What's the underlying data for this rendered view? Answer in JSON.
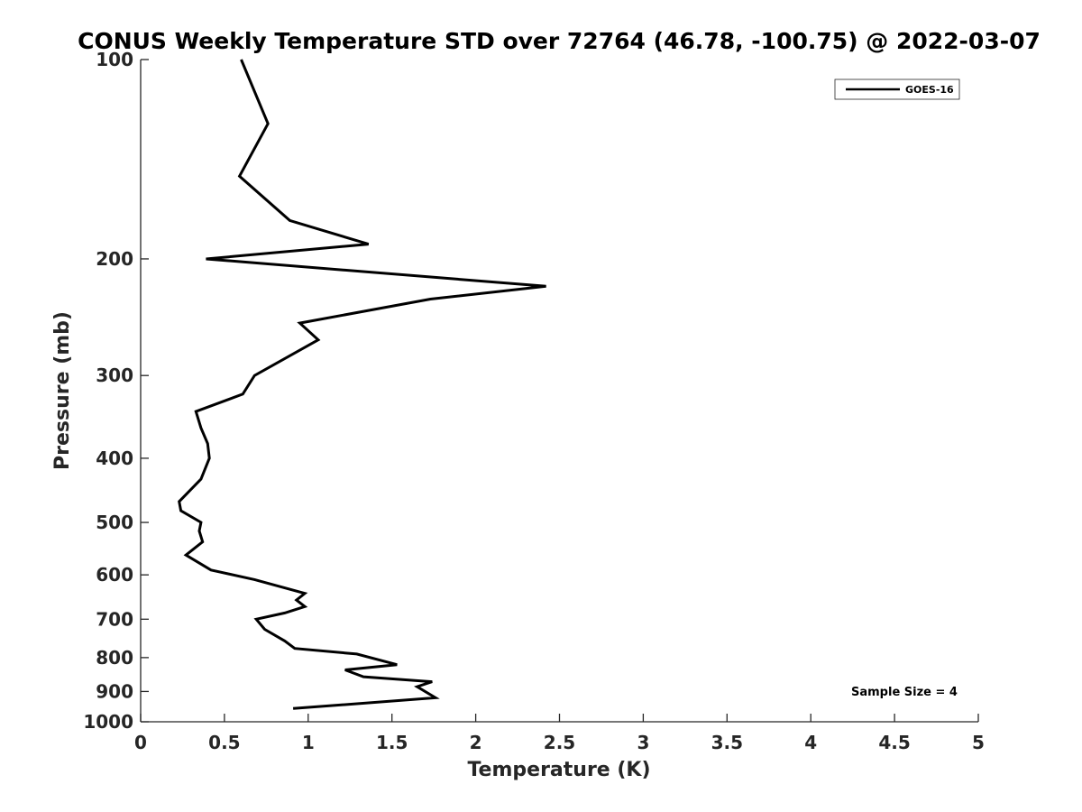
{
  "chart_data": {
    "type": "line",
    "title": "CONUS Weekly Temperature STD over 72764 (46.78, -100.75) @ 2022-03-07",
    "xlabel": "Temperature (K)",
    "ylabel": "Pressure (mb)",
    "xlim": [
      0,
      5
    ],
    "ylim": [
      100,
      1000
    ],
    "yscale": "log",
    "y_reversed": true,
    "xticks": [
      0,
      0.5,
      1,
      1.5,
      2,
      2.5,
      3,
      3.5,
      4,
      4.5,
      5
    ],
    "xtick_labels": [
      "0",
      "0.5",
      "1",
      "1.5",
      "2",
      "2.5",
      "3",
      "3.5",
      "4",
      "4.5",
      "5"
    ],
    "yticks": [
      100,
      200,
      300,
      400,
      500,
      600,
      700,
      800,
      900,
      1000
    ],
    "ytick_labels": [
      "100",
      "200",
      "300",
      "400",
      "500",
      "600",
      "700",
      "800",
      "900",
      "1000"
    ],
    "grid": false,
    "legend": {
      "position": "top-right",
      "entries": [
        "GOES-16"
      ]
    },
    "annotations": [
      "Sample Size = 4"
    ],
    "series": [
      {
        "name": "GOES-16",
        "color": "#000000",
        "points": [
          [
            0.6,
            100
          ],
          [
            0.76,
            125
          ],
          [
            0.59,
            150
          ],
          [
            0.89,
            175
          ],
          [
            1.36,
            190
          ],
          [
            0.39,
            200
          ],
          [
            2.42,
            220
          ],
          [
            1.73,
            230
          ],
          [
            0.95,
            250
          ],
          [
            1.06,
            265
          ],
          [
            0.68,
            300
          ],
          [
            0.61,
            320
          ],
          [
            0.33,
            340
          ],
          [
            0.36,
            360
          ],
          [
            0.4,
            380
          ],
          [
            0.41,
            400
          ],
          [
            0.36,
            430
          ],
          [
            0.23,
            465
          ],
          [
            0.24,
            480
          ],
          [
            0.36,
            500
          ],
          [
            0.35,
            515
          ],
          [
            0.37,
            535
          ],
          [
            0.27,
            560
          ],
          [
            0.42,
            590
          ],
          [
            0.68,
            610
          ],
          [
            0.98,
            640
          ],
          [
            0.93,
            655
          ],
          [
            0.98,
            670
          ],
          [
            0.86,
            685
          ],
          [
            0.69,
            700
          ],
          [
            0.74,
            725
          ],
          [
            0.86,
            755
          ],
          [
            0.92,
            775
          ],
          [
            1.29,
            790
          ],
          [
            1.53,
            820
          ],
          [
            1.22,
            835
          ],
          [
            1.33,
            855
          ],
          [
            1.74,
            870
          ],
          [
            1.65,
            885
          ],
          [
            1.76,
            920
          ],
          [
            0.91,
            955
          ]
        ]
      }
    ]
  }
}
